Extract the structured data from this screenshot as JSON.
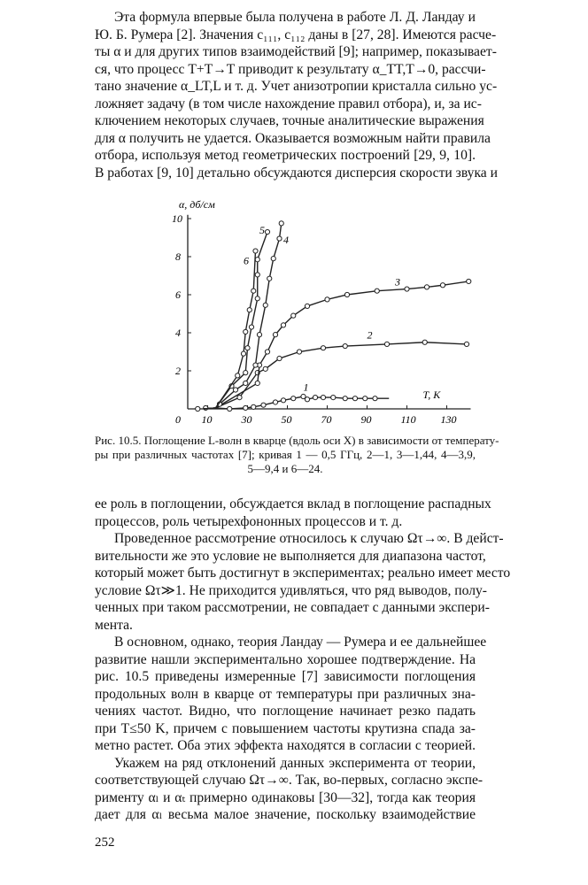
{
  "top_paragraph": [
    "Эта формула впервые была получена в работе Л. Д. Ландау и",
    "Ю. Б. Румера [2]. Значения c₁₁₁, c₁₁₂ даны в [27, 28]. Имеются расче-",
    "ты α и для других типов взаимодействий [9]; например, показывает-",
    "ся, что процесс T+T→T приводит к результату α_TT,T→0, рассчи-",
    "тано значение α_LT,L и т. д. Учет анизотропии кристалла сильно ус-",
    "ложняет задачу (в том числе нахождение правил отбора), и, за ис-",
    "ключением некоторых случаев, точные аналитические выражения",
    "для α получить не удается. Оказывается возможным найти правила",
    "отбора, используя метод геометрических построений [29, 9, 10].",
    "В работах [9, 10] детально обсуждаются дисперсия скорости звука и"
  ],
  "caption": [
    "Рис. 10.5. Поглощение L-волн в кварце (вдоль оси X) в зависимости от температу-",
    "ры при различных частотах [7]; кривая 1 — 0,5 ГГц, 2—1, 3—1,44, 4—3,9,",
    "5—9,4 и 6—24."
  ],
  "body": [
    {
      "text": "ее роль в поглощении, обсуждается вклад в поглощение распадных",
      "ind": false,
      "last": false
    },
    {
      "text": "процессов, роль четырехфононных процессов и т. д.",
      "ind": false,
      "last": true
    },
    {
      "text": "Проведенное рассмотрение относилось к случаю Ωτ→∞. В дейст-",
      "ind": true,
      "last": false
    },
    {
      "text": "вительности же это условие не выполняется для диапазона частот,",
      "ind": false,
      "last": false
    },
    {
      "text": "который может быть достигнут в экспериментах; реально имеет место",
      "ind": false,
      "last": false
    },
    {
      "text": "условие Ωτ≫1. Не приходится удивляться, что ряд выводов, полу-",
      "ind": false,
      "last": false
    },
    {
      "text": "ченных при таком рассмотрении, не совпадает с данными экспери-",
      "ind": false,
      "last": false
    },
    {
      "text": "мента.",
      "ind": false,
      "last": true
    },
    {
      "text": "В основном, однако, теория Ландау — Румера и ее дальнейшее",
      "ind": true,
      "last": false
    },
    {
      "text": "развитие нашли экспериментально хорошее подтверждение. На",
      "ind": false,
      "last": false
    },
    {
      "text": "рис. 10.5 приведены измеренные [7] зависимости поглощения",
      "ind": false,
      "last": false
    },
    {
      "text": "продольных волн в кварце от температуры при различных зна-",
      "ind": false,
      "last": false
    },
    {
      "text": "чениях частот. Видно, что поглощение начинает резко падать",
      "ind": false,
      "last": false
    },
    {
      "text": "при T≤50 K, причем с повышением частоты крутизна спада за-",
      "ind": false,
      "last": false
    },
    {
      "text": "метно растет. Оба этих эффекта находятся в согласии с теорией.",
      "ind": false,
      "last": false
    },
    {
      "text": "Укажем на ряд отклонений данных эксперимента от теории,",
      "ind": true,
      "last": false
    },
    {
      "text": "соответствующей случаю Ωτ→∞. Так, во-первых, согласно экспе-",
      "ind": false,
      "last": false
    },
    {
      "text": "рименту αₗ и αₜ примерно одинаковы [30—32], тогда как теория",
      "ind": false,
      "last": false
    },
    {
      "text": "дает для αₗ весьма малое значение, поскольку взаимодействие",
      "ind": false,
      "last": false
    }
  ],
  "page_number": "252",
  "chart_data": {
    "type": "line",
    "ylabel": "α, дб/см",
    "xlabel": "T, K",
    "xlim": [
      0,
      142
    ],
    "ylim": [
      0,
      10
    ],
    "x_ticks": [
      "0",
      "10",
      "30",
      "50",
      "70",
      "90",
      "110",
      "130"
    ],
    "x_tick_values": [
      0,
      10,
      30,
      50,
      70,
      90,
      110,
      130
    ],
    "y_ticks": [
      "2",
      "4",
      "6",
      "8",
      "10"
    ],
    "y_tick_values": [
      2,
      4,
      6,
      8,
      10
    ],
    "grid": false,
    "series": [
      {
        "name": "1",
        "label_at": [
          58,
          0.95
        ],
        "x": [
          5,
          9,
          21,
          29,
          33,
          38,
          44,
          48,
          53,
          58,
          60,
          64,
          68,
          73,
          79,
          84,
          89,
          94
        ],
        "y": [
          0,
          0.05,
          0,
          0.05,
          0.1,
          0.2,
          0.35,
          0.45,
          0.55,
          0.65,
          0.5,
          0.6,
          0.6,
          0.6,
          0.55,
          0.55,
          0.55,
          0.55
        ],
        "line_end": 101
      },
      {
        "name": "2",
        "label_at": [
          90,
          3.7
        ],
        "x": [
          26,
          35,
          39,
          46,
          56,
          68,
          79,
          100,
          119,
          140
        ],
        "y": [
          0.6,
          1.9,
          2.1,
          2.65,
          3.0,
          3.2,
          3.3,
          3.4,
          3.5,
          3.4
        ]
      },
      {
        "name": "3",
        "label_at": [
          104,
          6.5
        ],
        "x": [
          35,
          36,
          40,
          44,
          48,
          53,
          60,
          70,
          80,
          95,
          110,
          120,
          128,
          141
        ],
        "y": [
          1.35,
          2.3,
          3.0,
          3.9,
          4.4,
          4.9,
          5.4,
          5.75,
          6.0,
          6.2,
          6.3,
          6.4,
          6.5,
          6.7
        ]
      },
      {
        "name": "4",
        "label_at": [
          48,
          8.7
        ],
        "x": [
          16,
          24,
          29,
          34,
          36,
          39,
          41,
          43,
          46,
          47
        ],
        "y": [
          0.25,
          1.0,
          1.35,
          2.3,
          3.9,
          5.45,
          6.85,
          7.9,
          8.95,
          9.75
        ]
      },
      {
        "name": "5",
        "label_at": [
          36,
          9.2
        ],
        "x": [
          22,
          29,
          30,
          32,
          35,
          35,
          35,
          40
        ],
        "y": [
          1.2,
          1.9,
          3.2,
          4.3,
          5.8,
          7.05,
          7.85,
          9.3
        ]
      },
      {
        "name": "6",
        "label_at": [
          28,
          7.6
        ],
        "x": [
          25,
          28,
          29,
          31,
          33,
          34
        ],
        "y": [
          1.75,
          2.9,
          4.05,
          5.2,
          6.2,
          8.3
        ]
      }
    ]
  }
}
